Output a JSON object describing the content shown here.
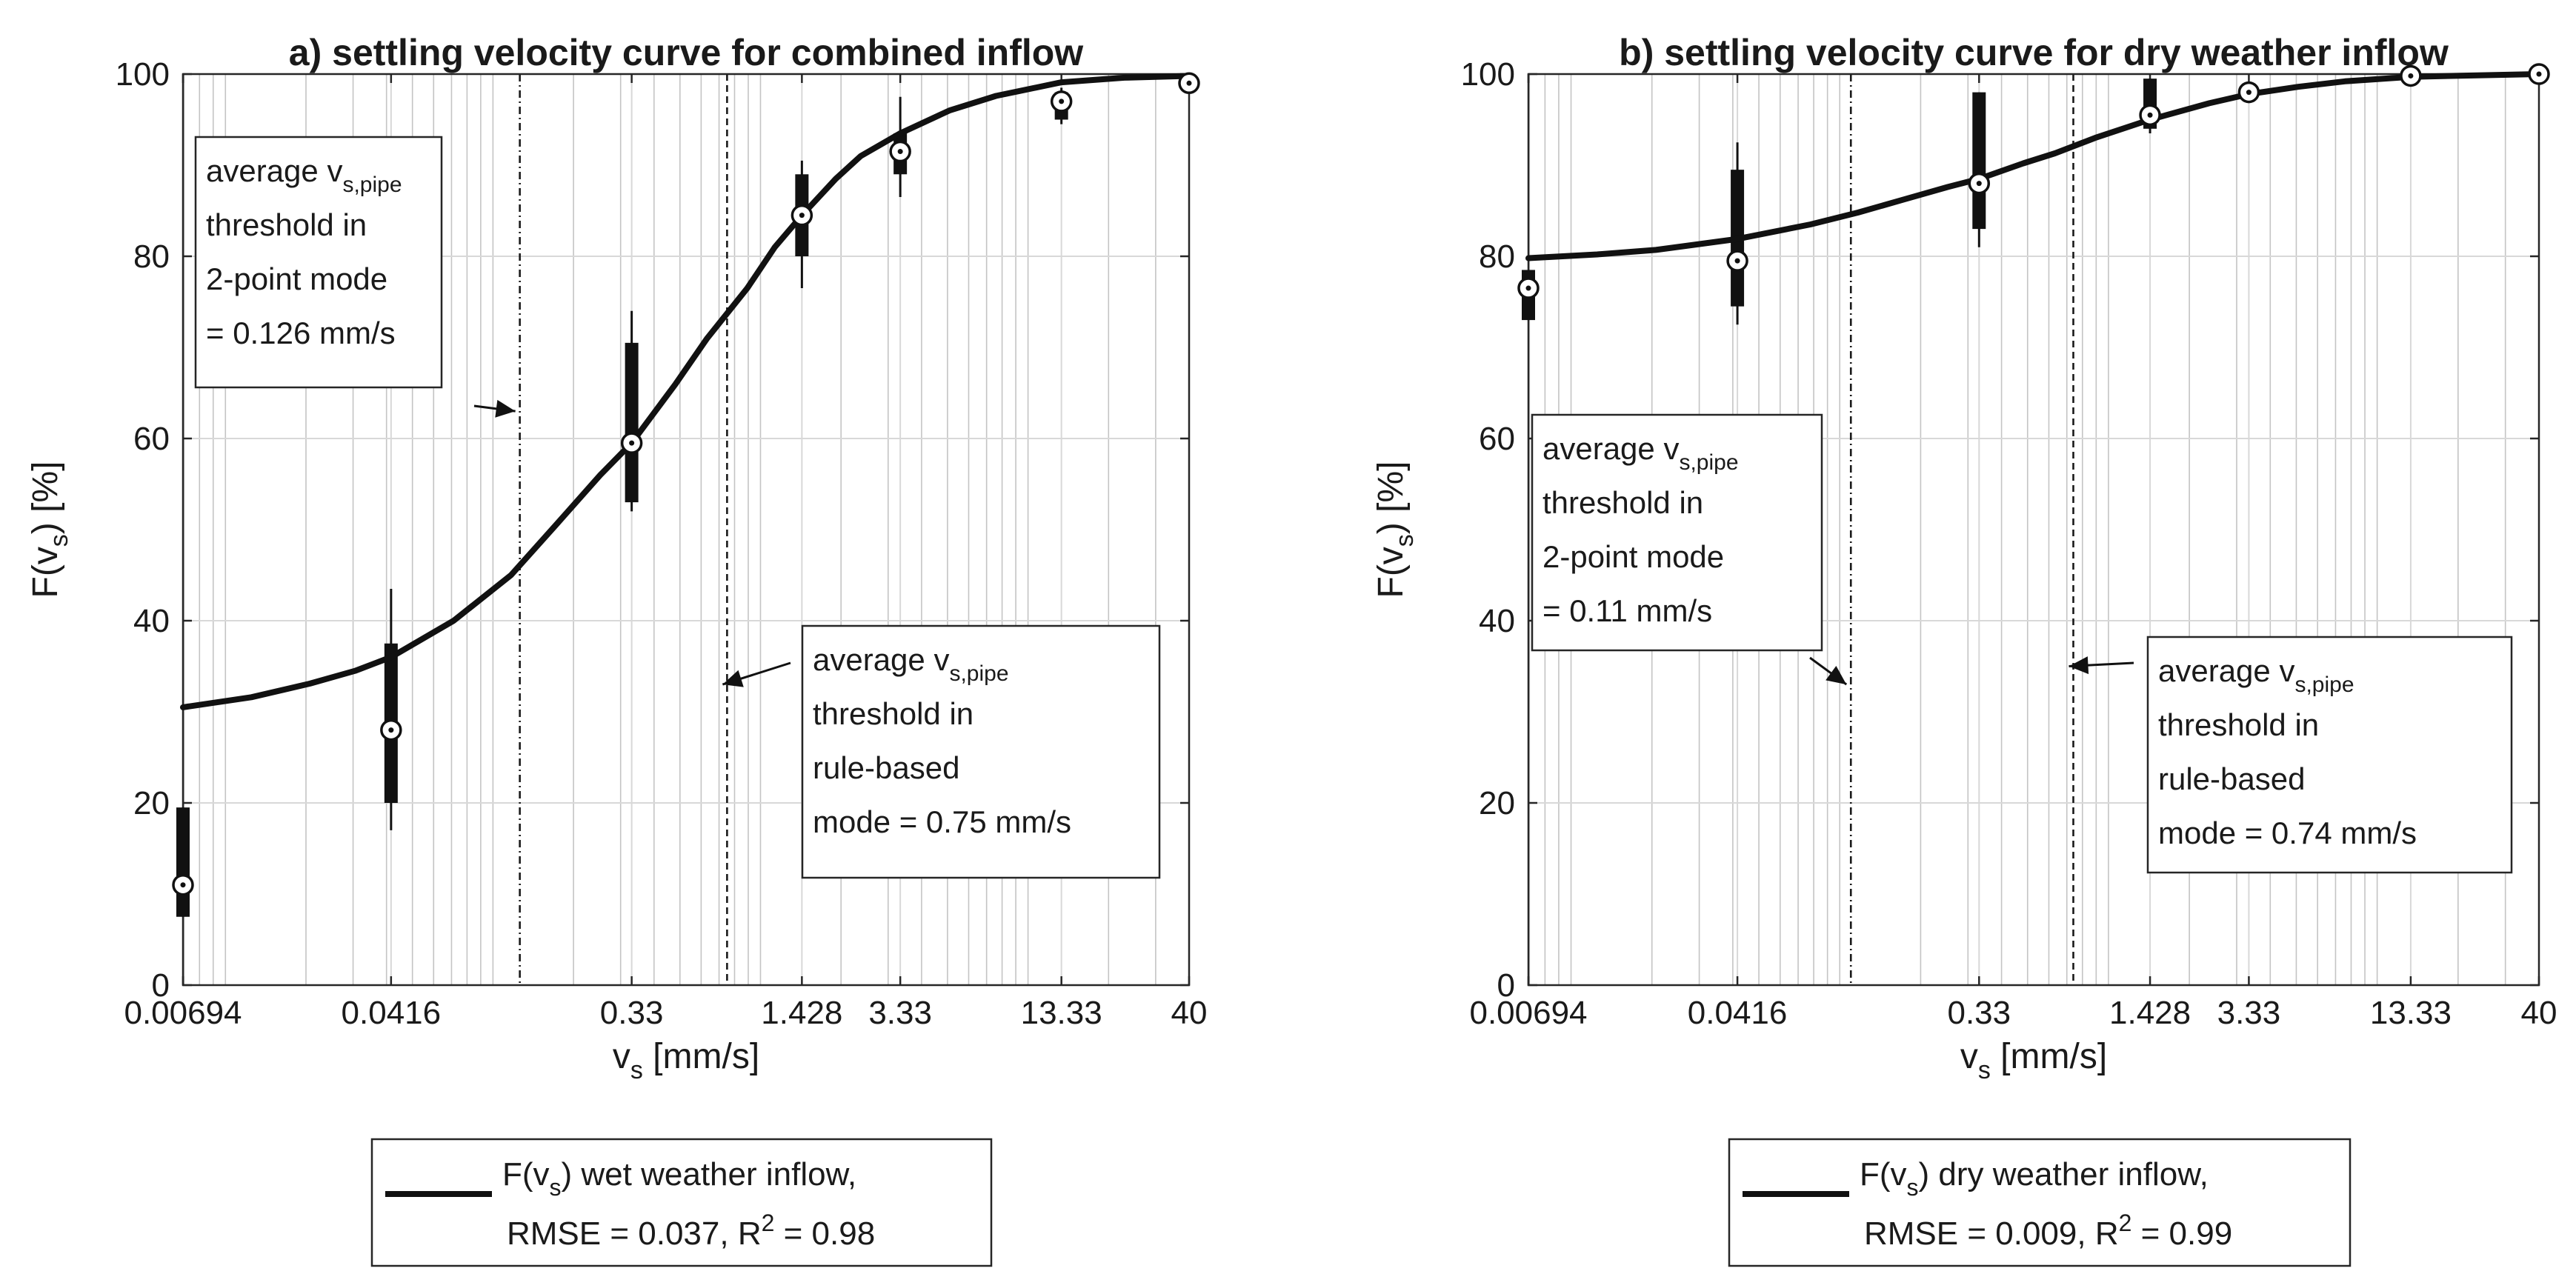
{
  "chart_data": [
    {
      "type": "scatter",
      "id": "a",
      "title": "a) settling velocity curve for combined inflow",
      "ylabel": {
        "main": "F(v",
        "sub": "s",
        "tail": ") [%]"
      },
      "xlabel": {
        "main": "v",
        "sub": "s",
        "tail": " [mm/s]"
      },
      "xscale": "log",
      "xlim": [
        0.00694,
        40
      ],
      "ylim": [
        0,
        100
      ],
      "grid": true,
      "xticks": [
        0.00694,
        0.0416,
        0.33,
        1.428,
        3.33,
        13.33,
        40
      ],
      "xtick_labels": [
        "0.00694",
        "0.0416",
        "0.33",
        "1.428",
        "3.33",
        "13.33",
        "40"
      ],
      "yticks": [
        0,
        20,
        40,
        60,
        80,
        100
      ],
      "ytick_labels": [
        "0",
        "20",
        "40",
        "60",
        "80",
        "100"
      ],
      "curve": {
        "name": "F(vs) wet weather inflow",
        "points": [
          [
            0.00694,
            30.5
          ],
          [
            0.0125,
            31.6
          ],
          [
            0.0207,
            33.1
          ],
          [
            0.0305,
            34.5
          ],
          [
            0.0416,
            36.0
          ],
          [
            0.0713,
            40.0
          ],
          [
            0.1168,
            45.0
          ],
          [
            0.1717,
            50.5
          ],
          [
            0.252,
            56.0
          ],
          [
            0.33,
            59.5
          ],
          [
            0.482,
            66.0
          ],
          [
            0.632,
            71.0
          ],
          [
            0.893,
            76.5
          ],
          [
            1.131,
            81.0
          ],
          [
            1.428,
            84.5
          ],
          [
            1.91,
            88.5
          ],
          [
            2.37,
            91.0
          ],
          [
            3.33,
            93.5
          ],
          [
            5.08,
            96.0
          ],
          [
            7.59,
            97.6
          ],
          [
            13.33,
            99.1
          ],
          [
            22.9,
            99.6
          ],
          [
            40,
            99.8
          ]
        ]
      },
      "boxes": [
        {
          "x": 0.00694,
          "median": 11,
          "q1": 7.5,
          "q3": 19.5,
          "min": 7.5,
          "max": 19.5
        },
        {
          "x": 0.0416,
          "median": 28,
          "q1": 20,
          "q3": 37.5,
          "min": 17,
          "max": 43.5
        },
        {
          "x": 0.33,
          "median": 59.5,
          "q1": 53,
          "q3": 70.5,
          "min": 52,
          "max": 74
        },
        {
          "x": 1.428,
          "median": 84.5,
          "q1": 80,
          "q3": 89,
          "min": 76.5,
          "max": 90.5
        },
        {
          "x": 3.33,
          "median": 91.5,
          "q1": 89,
          "q3": 93.5,
          "min": 86.5,
          "max": 97.5
        },
        {
          "x": 13.33,
          "median": 97,
          "q1": 95,
          "q3": 98,
          "min": 94.5,
          "max": 98.5
        },
        {
          "x": 40,
          "median": 99,
          "q1": 99,
          "q3": 99,
          "min": 99,
          "max": 99
        }
      ],
      "vlines": [
        {
          "x": 0.126,
          "style": "dash-dot"
        },
        {
          "x": 0.75,
          "style": "dashed"
        }
      ],
      "annotations": [
        {
          "lines": [
            {
              "main": "average v",
              "sub": "s,pipe"
            },
            {
              "main": " threshold in"
            },
            {
              "main": " 2-point mode"
            },
            {
              "main": " = 0.126 mm/s"
            }
          ],
          "arrow": {
            "to_x": 0.126,
            "to_y": 63
          }
        },
        {
          "lines": [
            {
              "main": "average v",
              "sub": "s,pipe"
            },
            {
              "main": " threshold in"
            },
            {
              "main": " rule-based"
            },
            {
              "main": " mode = 0.75 mm/s"
            }
          ],
          "arrow": {
            "to_x": 0.75,
            "to_y": 33
          }
        }
      ],
      "legend": {
        "line1": {
          "pre": "F(v",
          "sub": "s",
          "post": ") wet weather inflow,"
        },
        "line2": {
          "pre": "RMSE = 0.037, R",
          "sup": "2",
          "post": " = 0.98"
        }
      }
    },
    {
      "type": "scatter",
      "id": "b",
      "title": "b) settling velocity curve for dry weather inflow",
      "ylabel": {
        "main": "F(v",
        "sub": "s",
        "tail": ") [%]"
      },
      "xlabel": {
        "main": "v",
        "sub": "s",
        "tail": " [mm/s]"
      },
      "xscale": "log",
      "xlim": [
        0.00694,
        40
      ],
      "ylim": [
        0,
        100
      ],
      "grid": true,
      "xticks": [
        0.00694,
        0.0416,
        0.33,
        1.428,
        3.33,
        13.33,
        40
      ],
      "xtick_labels": [
        "0.00694",
        "0.0416",
        "0.33",
        "1.428",
        "3.33",
        "13.33",
        "40"
      ],
      "yticks": [
        0,
        20,
        40,
        60,
        80,
        100
      ],
      "ytick_labels": [
        "0",
        "20",
        "40",
        "60",
        "80",
        "100"
      ],
      "curve": {
        "name": "F(vs) dry weather inflow",
        "points": [
          [
            0.00694,
            79.8
          ],
          [
            0.0125,
            80.2
          ],
          [
            0.0207,
            80.7
          ],
          [
            0.0416,
            81.9
          ],
          [
            0.0778,
            83.5
          ],
          [
            0.1168,
            84.8
          ],
          [
            0.1717,
            86.2
          ],
          [
            0.252,
            87.6
          ],
          [
            0.33,
            88.5
          ],
          [
            0.482,
            90.2
          ],
          [
            0.632,
            91.3
          ],
          [
            0.893,
            93.0
          ],
          [
            1.428,
            95.0
          ],
          [
            2.37,
            96.8
          ],
          [
            3.33,
            97.8
          ],
          [
            5.08,
            98.6
          ],
          [
            7.59,
            99.2
          ],
          [
            13.33,
            99.7
          ],
          [
            40,
            100
          ]
        ]
      },
      "boxes": [
        {
          "x": 0.00694,
          "median": 76.5,
          "q1": 73,
          "q3": 78.5,
          "min": 73,
          "max": 78.5
        },
        {
          "x": 0.0416,
          "median": 79.5,
          "q1": 74.5,
          "q3": 89.5,
          "min": 72.5,
          "max": 92.5
        },
        {
          "x": 0.33,
          "median": 88,
          "q1": 83,
          "q3": 98,
          "min": 81,
          "max": 98
        },
        {
          "x": 1.428,
          "median": 95.5,
          "q1": 94,
          "q3": 99.5,
          "min": 93.5,
          "max": 99.5
        },
        {
          "x": 3.33,
          "median": 98,
          "q1": 98,
          "q3": 98,
          "min": 98,
          "max": 98
        },
        {
          "x": 13.33,
          "median": 99.8,
          "q1": 99.8,
          "q3": 99.8,
          "min": 99.8,
          "max": 99.8
        },
        {
          "x": 40,
          "median": 100,
          "q1": 100,
          "q3": 100,
          "min": 100,
          "max": 100
        }
      ],
      "vlines": [
        {
          "x": 0.11,
          "style": "dash-dot"
        },
        {
          "x": 0.74,
          "style": "dashed"
        }
      ],
      "annotations": [
        {
          "lines": [
            {
              "main": "average v",
              "sub": "s,pipe"
            },
            {
              "main": " threshold in"
            },
            {
              "main": " 2-point mode"
            },
            {
              "main": " = 0.11 mm/s"
            }
          ],
          "arrow": {
            "to_x": 0.11,
            "to_y": 33
          }
        },
        {
          "lines": [
            {
              "main": "average v",
              "sub": "s,pipe"
            },
            {
              "main": " threshold in"
            },
            {
              "main": " rule-based"
            },
            {
              "main": " mode = 0.74 mm/s"
            }
          ],
          "arrow": {
            "to_x": 0.74,
            "to_y": 35
          }
        }
      ],
      "legend": {
        "line1": {
          "pre": "F(v",
          "sub": "s",
          "post": ") dry weather inflow,"
        },
        "line2": {
          "pre": "RMSE = 0.009, R",
          "sup": "2",
          "post": " = 0.99"
        }
      }
    }
  ]
}
